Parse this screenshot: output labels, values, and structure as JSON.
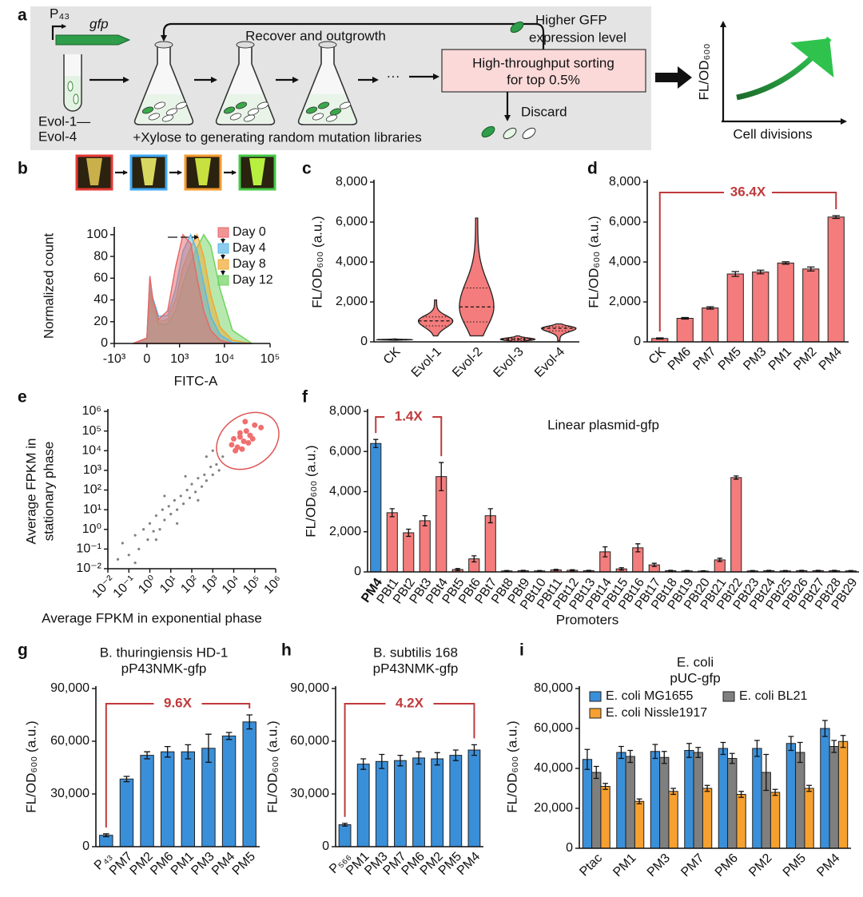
{
  "diagram": {
    "panel": "a",
    "promoter": "P₄₃",
    "gene": "gfp",
    "strains": [
      "Evol-1—",
      "Evol-4"
    ],
    "recover": "Recover and outgrowth",
    "higher": [
      "Higher GFP",
      "expression level"
    ],
    "sorting": [
      "High-throughput sorting",
      "for top 0.5%"
    ],
    "discard": "Discard",
    "xylose": "+Xylose to generating random mutation libraries",
    "ellipsis": "···",
    "inset": {
      "ylabel": "FL/OD₆₀₀",
      "xlabel": "Cell divisions"
    }
  },
  "chart_data": [
    {
      "panel": "b",
      "type": "area",
      "xlabel": "FITC-A",
      "ylabel": "Normalized count",
      "xscale": "symlog",
      "x": [
        -300,
        0,
        60,
        120,
        250,
        500,
        800,
        1200,
        1800,
        2500,
        3500,
        5000,
        8000,
        15000,
        40000
      ],
      "series": [
        {
          "name": "Day 0",
          "color": "#e8686a",
          "values": [
            0,
            5,
            62,
            40,
            22,
            30,
            70,
            100,
            92,
            60,
            30,
            12,
            3,
            0,
            0
          ]
        },
        {
          "name": "Day 4",
          "color": "#5bb8e8",
          "values": [
            0,
            5,
            60,
            42,
            25,
            26,
            50,
            85,
            100,
            85,
            55,
            25,
            8,
            1,
            0
          ]
        },
        {
          "name": "Day 8",
          "color": "#f0a830",
          "values": [
            0,
            5,
            50,
            35,
            20,
            22,
            40,
            70,
            88,
            100,
            80,
            45,
            15,
            3,
            0
          ]
        },
        {
          "name": "Day 12",
          "color": "#6fd35f",
          "values": [
            0,
            5,
            45,
            30,
            18,
            18,
            30,
            55,
            75,
            88,
            100,
            90,
            50,
            12,
            0
          ]
        }
      ],
      "xlim": [
        -1000,
        100000
      ],
      "xticks": [
        {
          "value": -1000,
          "label": "-10³"
        },
        0,
        {
          "value": 1000,
          "label": "10³"
        },
        {
          "value": 10000,
          "label": "10⁴"
        },
        {
          "value": 100000,
          "label": "10⁵"
        }
      ],
      "ylim": [
        0,
        105
      ],
      "yticks": [
        0,
        20,
        40,
        60,
        80,
        100
      ]
    },
    {
      "panel": "c",
      "type": "violin",
      "ylabel": "FL/OD₆₀₀ (a.u.)",
      "color": "#f47c7c",
      "categories": [
        "CK",
        "Evol-1",
        "Evol-2",
        "Evol-3",
        "Evol-4"
      ],
      "min": [
        80,
        300,
        300,
        20,
        50
      ],
      "q1": [
        100,
        800,
        1000,
        80,
        550
      ],
      "median": [
        110,
        1050,
        1750,
        130,
        680
      ],
      "q3": [
        120,
        1250,
        2700,
        180,
        760
      ],
      "max": [
        150,
        2100,
        6200,
        300,
        900
      ],
      "ylim": [
        0,
        8000
      ],
      "yticks": [
        0,
        {
          "value": 2000,
          "label": "2,000"
        },
        {
          "value": 4000,
          "label": "4,000"
        },
        {
          "value": 6000,
          "label": "6,000"
        },
        {
          "value": 8000,
          "label": "8,000"
        }
      ]
    },
    {
      "panel": "d",
      "type": "bar",
      "ylabel": "FL/OD₆₀₀ (a.u.)",
      "color": "#f47c7c",
      "annotation": "36.4X",
      "categories": [
        "CK",
        "PM6",
        "PM7",
        "PM5",
        "PM3",
        "PM1",
        "PM2",
        "PM4"
      ],
      "values": [
        170,
        1180,
        1700,
        3400,
        3500,
        3950,
        3650,
        6250
      ],
      "errors": [
        30,
        40,
        60,
        120,
        90,
        60,
        100,
        70
      ],
      "ylim": [
        0,
        8000
      ],
      "yticks": [
        0,
        {
          "value": 2000,
          "label": "2,000"
        },
        {
          "value": 4000,
          "label": "4,000"
        },
        {
          "value": 6000,
          "label": "6,000"
        },
        {
          "value": 8000,
          "label": "8,000"
        }
      ]
    },
    {
      "panel": "e",
      "type": "scatter",
      "xlabel": "Average FPKM in exponential phase",
      "ylabel": [
        "Average FPKM in",
        "stationary phase"
      ],
      "xscale": "log",
      "yscale": "log",
      "series": [
        {
          "color": "#808080",
          "x": [
            0.05,
            0.1,
            0.2,
            0.3,
            0.5,
            0.8,
            1,
            1.5,
            2,
            3,
            4,
            5,
            8,
            10,
            15,
            20,
            30,
            40,
            60,
            80,
            100,
            150,
            200,
            300,
            400,
            500,
            800,
            1000,
            1500,
            2000,
            3000,
            0.2,
            0.03,
            5,
            50,
            500,
            2,
            20,
            200,
            1000
          ],
          "y": [
            0.2,
            0.05,
            0.5,
            0.1,
            1,
            0.3,
            2,
            0.8,
            5,
            1,
            10,
            3,
            15,
            6,
            30,
            10,
            50,
            20,
            100,
            40,
            200,
            80,
            400,
            150,
            600,
            300,
            1500,
            600,
            2000,
            1000,
            5000,
            0.02,
            0.03,
            50,
            500,
            5000,
            0.3,
            2,
            30,
            10000
          ]
        },
        {
          "color": "#f07070",
          "x": [
            8000,
            10000,
            15000,
            20000,
            30000,
            40000,
            50000,
            60000,
            20000,
            100000,
            200000,
            12000,
            25000,
            80000,
            35000
          ],
          "y": [
            20000,
            40000,
            15000,
            80000,
            30000,
            100000,
            25000,
            60000,
            50000,
            200000,
            150000,
            10000,
            12000,
            40000,
            300000
          ]
        }
      ],
      "xlim": [
        0.01,
        1000000
      ],
      "ylim": [
        0.01,
        1000000
      ],
      "xticks": [
        {
          "value": 0.01,
          "label": "10⁻²"
        },
        {
          "value": 0.1,
          "label": "10⁻¹"
        },
        {
          "value": 1,
          "label": "10⁰"
        },
        {
          "value": 10,
          "label": "10¹"
        },
        {
          "value": 100,
          "label": "10²"
        },
        {
          "value": 1000,
          "label": "10³"
        },
        {
          "value": 10000,
          "label": "10⁴"
        },
        {
          "value": 100000,
          "label": "10⁵"
        },
        {
          "value": 1000000,
          "label": "10⁶"
        }
      ],
      "yticks": [
        {
          "value": 0.01,
          "label": "10⁻²"
        },
        {
          "value": 0.1,
          "label": "10⁻¹"
        },
        {
          "value": 1,
          "label": "10⁰"
        },
        {
          "value": 10,
          "label": "10¹"
        },
        {
          "value": 100,
          "label": "10²"
        },
        {
          "value": 1000,
          "label": "10³"
        },
        {
          "value": 10000,
          "label": "10⁴"
        },
        {
          "value": 100000,
          "label": "10⁵"
        },
        {
          "value": 1000000,
          "label": "10⁶"
        }
      ]
    },
    {
      "panel": "f",
      "type": "bar",
      "title": "Linear plasmid-gfp",
      "xlabel": "Promoters",
      "ylabel": "FL/OD₆₀₀ (a.u.)",
      "annotation": "1.4X",
      "categories": [
        "PM4",
        "PBt1",
        "PBt2",
        "PBt3",
        "PBt4",
        "PBt5",
        "PBt6",
        "PBt7",
        "PBt8",
        "PBt9",
        "PBt10",
        "PBt11",
        "PBt12",
        "PBt13",
        "PBt14",
        "PBt15",
        "PBt16",
        "PBt17",
        "PBt18",
        "PBt19",
        "PBt20",
        "PBt21",
        "PBt22",
        "PBt23",
        "PBt24",
        "PBt25",
        "PBt26",
        "PBt27",
        "PBt28",
        "PBt29"
      ],
      "values": [
        6400,
        2950,
        1950,
        2550,
        4750,
        120,
        650,
        2800,
        50,
        60,
        50,
        100,
        80,
        60,
        1000,
        150,
        1200,
        350,
        60,
        50,
        40,
        600,
        4700,
        50,
        60,
        50,
        60,
        60,
        60,
        50
      ],
      "errors": [
        200,
        200,
        180,
        250,
        700,
        50,
        150,
        350,
        20,
        20,
        20,
        30,
        30,
        20,
        250,
        60,
        200,
        80,
        20,
        20,
        20,
        80,
        80,
        20,
        20,
        20,
        20,
        20,
        20,
        20
      ],
      "colors": [
        "#3a8fd9",
        "#f47c7c",
        "#f47c7c",
        "#f47c7c",
        "#f47c7c",
        "#f47c7c",
        "#f47c7c",
        "#f47c7c",
        "#f47c7c",
        "#f47c7c",
        "#f47c7c",
        "#f47c7c",
        "#f47c7c",
        "#f47c7c",
        "#f47c7c",
        "#f47c7c",
        "#f47c7c",
        "#f47c7c",
        "#f47c7c",
        "#f47c7c",
        "#f47c7c",
        "#f47c7c",
        "#f47c7c",
        "#f47c7c",
        "#f47c7c",
        "#f47c7c",
        "#f47c7c",
        "#f47c7c",
        "#f47c7c",
        "#f47c7c"
      ],
      "ylim": [
        0,
        8000
      ],
      "yticks": [
        0,
        {
          "value": 2000,
          "label": "2,000"
        },
        {
          "value": 4000,
          "label": "4,000"
        },
        {
          "value": 6000,
          "label": "6,000"
        },
        {
          "value": 8000,
          "label": "8,000"
        }
      ]
    },
    {
      "panel": "g",
      "type": "bar",
      "title": [
        "B. thuringiensis HD-1",
        "pP43NMK-gfp"
      ],
      "ylabel": "FL/OD₆₀₀ (a.u.)",
      "color": "#3a8fd9",
      "annotation": "9.6X",
      "categories": [
        "P₄₃",
        "PM7",
        "PM2",
        "PM6",
        "PM1",
        "PM3",
        "PM4",
        "PM5"
      ],
      "values": [
        6500,
        38500,
        52000,
        54000,
        54000,
        56000,
        63000,
        71000
      ],
      "errors": [
        800,
        1500,
        2000,
        3000,
        4000,
        8000,
        2000,
        4000
      ],
      "ylim": [
        0,
        90000
      ],
      "yticks": [
        0,
        {
          "value": 30000,
          "label": "30,000"
        },
        {
          "value": 60000,
          "label": "60,000"
        },
        {
          "value": 90000,
          "label": "90,000"
        }
      ]
    },
    {
      "panel": "h",
      "type": "bar",
      "title": [
        "B. subtilis 168",
        "pP43NMK-gfp"
      ],
      "ylabel": "FL/OD₆₀₀ (a.u.)",
      "color": "#3a8fd9",
      "annotation": "4.2X",
      "categories": [
        "P₅₆₆",
        "PM1",
        "PM3",
        "PM7",
        "PM6",
        "PM2",
        "PM5",
        "PM4"
      ],
      "values": [
        12500,
        47000,
        48500,
        49000,
        50500,
        50000,
        52000,
        55000
      ],
      "errors": [
        800,
        3000,
        4000,
        3000,
        3500,
        3500,
        3000,
        3000
      ],
      "ylim": [
        0,
        90000
      ],
      "yticks": [
        0,
        {
          "value": 30000,
          "label": "30,000"
        },
        {
          "value": 60000,
          "label": "60,000"
        },
        {
          "value": 90000,
          "label": "90,000"
        }
      ]
    },
    {
      "panel": "i",
      "type": "grouped_bar",
      "title": [
        "E. coli",
        "pUC-gfp"
      ],
      "ylabel": "FL/OD₆₀₀ (a.u.)",
      "categories": [
        "Ptac",
        "PM1",
        "PM3",
        "PM7",
        "PM6",
        "PM2",
        "PM5",
        "PM4"
      ],
      "series": [
        {
          "name": "E. coli MG1655",
          "color": "#3a8fd9",
          "values": [
            44500,
            48000,
            48500,
            49000,
            50000,
            50000,
            52500,
            60000
          ],
          "errors": [
            5000,
            3000,
            3500,
            3500,
            3000,
            4000,
            3500,
            4000
          ]
        },
        {
          "name": "E. coli BL21",
          "color": "#7f7f7f",
          "values": [
            38000,
            46000,
            45500,
            48000,
            45000,
            38000,
            48000,
            51000
          ],
          "errors": [
            3000,
            3000,
            3000,
            2500,
            2500,
            9000,
            5000,
            3000
          ]
        },
        {
          "name": "E. coli Nissle1917",
          "color": "#f5a030",
          "values": [
            31000,
            23500,
            28500,
            30000,
            27000,
            28000,
            30000,
            53500
          ],
          "errors": [
            1500,
            1200,
            1500,
            1500,
            1500,
            1500,
            1500,
            3000
          ]
        }
      ],
      "ylim": [
        0,
        80000
      ],
      "yticks": [
        0,
        {
          "value": 20000,
          "label": "20,000"
        },
        {
          "value": 40000,
          "label": "40,000"
        },
        {
          "value": 60000,
          "label": "60,000"
        },
        {
          "value": 80000,
          "label": "80,000"
        }
      ]
    }
  ]
}
